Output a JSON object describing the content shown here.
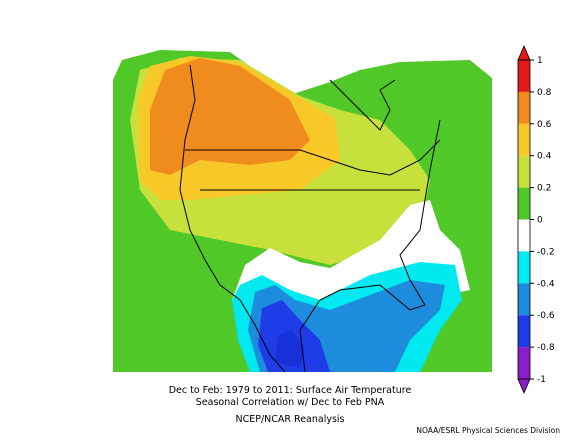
{
  "caption": {
    "line1": "Dec to Feb: 1979 to 2011: Surface Air Temperature",
    "line2": "Seasonal Correlation w/ Dec to Feb PNA",
    "line3": "NCEP/NCAR Reanalysis"
  },
  "credit": "NOAA/ESRL Physical Sciences Division",
  "colorbar": {
    "range": [
      -1,
      1
    ],
    "ticks": [
      1,
      0.8,
      0.6,
      0.4,
      0.2,
      0,
      -0.2,
      -0.4,
      -0.6,
      -0.8,
      -1
    ],
    "colors": [
      "#e41a1a",
      "#f08c1e",
      "#f8c828",
      "#c8e03c",
      "#50c828",
      "#ffffff",
      "#00e8f0",
      "#1e8cdc",
      "#1e3ce8",
      "#8c1ec8"
    ]
  }
}
